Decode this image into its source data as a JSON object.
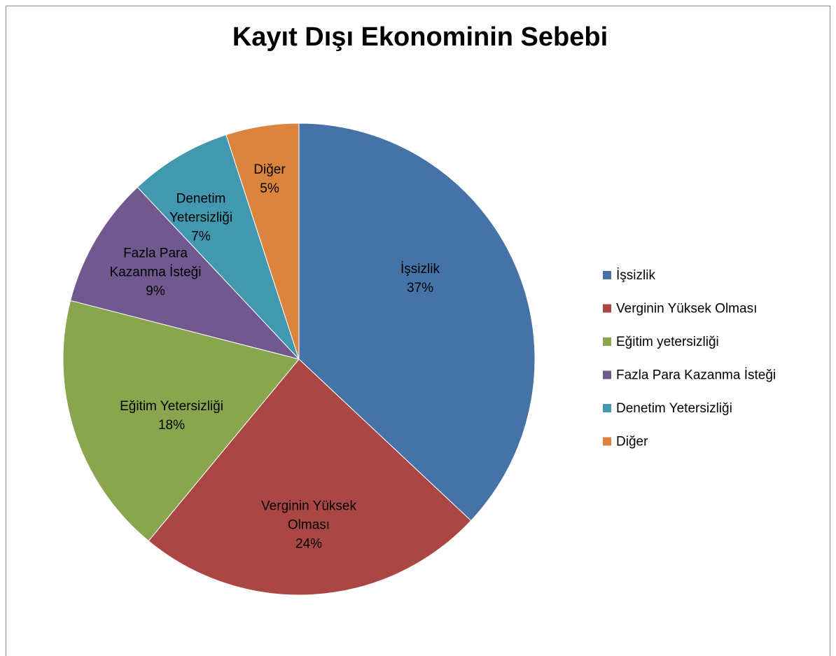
{
  "chart_data": {
    "type": "pie",
    "title": "Kayıt Dışı Ekonominin Sebebi",
    "categories": [
      "İşsizlik",
      "Verginin Yüksek Olması",
      "Eğitim yetersizliği",
      "Fazla Para Kazanma İsteği",
      "Denetim Yetersizliği",
      "Diğer"
    ],
    "slice_labels": [
      "İşsizlik",
      "Verginin Yüksek Olması",
      "Eğitim Yetersizliği",
      "Fazla Para Kazanma İsteği",
      "Denetim Yetersizliği",
      "Diğer"
    ],
    "values": [
      37,
      24,
      18,
      9,
      7,
      5
    ],
    "value_labels": [
      "37%",
      "24%",
      "18%",
      "9%",
      "7%",
      "5%"
    ],
    "colors": [
      "#4572a7",
      "#aa4643",
      "#89a54e",
      "#71588f",
      "#4198af",
      "#db843d"
    ],
    "legend": "right"
  }
}
